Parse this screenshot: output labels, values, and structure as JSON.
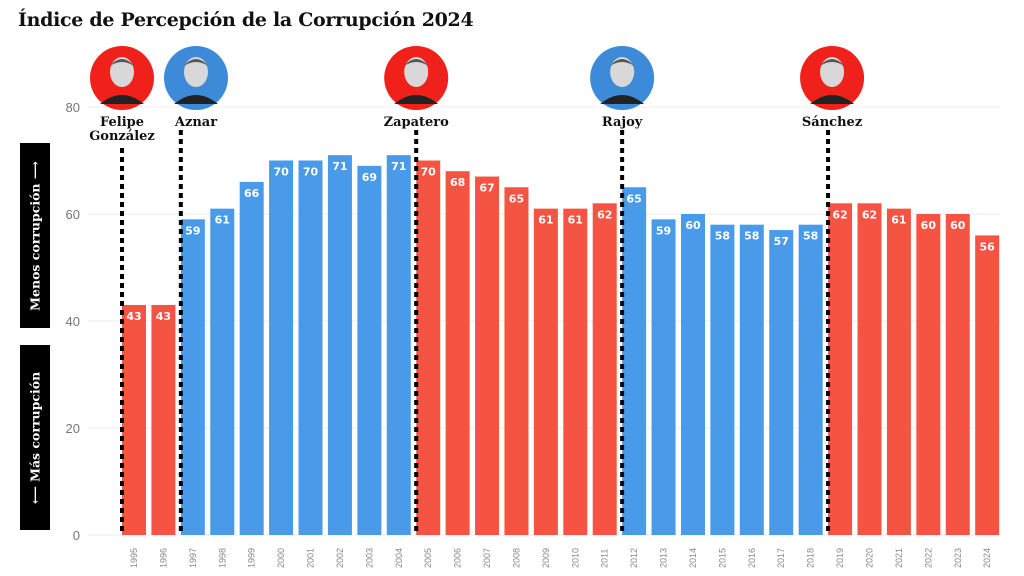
{
  "title": "Índice de Percepción de la Corrupción 2024",
  "side_labels": {
    "up": "Menos corrupción",
    "down": "Más corrupción",
    "up_arrow": "⟶",
    "down_arrow": "⟵"
  },
  "colors": {
    "red": "#f55443",
    "blue": "#4a9aea",
    "portrait_red": "#f0201a",
    "portrait_blue": "#3d8ad8"
  },
  "leaders": [
    {
      "name": "Felipe González",
      "lines": [
        "Felipe",
        "González"
      ],
      "from_year": "1995",
      "party_color": "red"
    },
    {
      "name": "Aznar",
      "lines": [
        "Aznar"
      ],
      "from_year": "1997",
      "party_color": "blue"
    },
    {
      "name": "Zapatero",
      "lines": [
        "Zapatero"
      ],
      "from_year": "2005",
      "party_color": "red"
    },
    {
      "name": "Rajoy",
      "lines": [
        "Rajoy"
      ],
      "from_year": "2012",
      "party_color": "blue"
    },
    {
      "name": "Sánchez",
      "lines": [
        "Sánchez"
      ],
      "from_year": "2019",
      "party_color": "red"
    }
  ],
  "chart_data": {
    "type": "bar",
    "title": "Índice de Percepción de la Corrupción 2024",
    "xlabel": "",
    "ylabel": "",
    "ylim": [
      0,
      80
    ],
    "yticks": [
      0,
      20,
      40,
      60,
      80
    ],
    "grid": true,
    "categories": [
      "1995",
      "1996",
      "1997",
      "1998",
      "1999",
      "2000",
      "2001",
      "2002",
      "2003",
      "2004",
      "2005",
      "2006",
      "2007",
      "2008",
      "2009",
      "2010",
      "2011",
      "2012",
      "2013",
      "2014",
      "2015",
      "2016",
      "2017",
      "2018",
      "2019",
      "2020",
      "2021",
      "2022",
      "2023",
      "2024"
    ],
    "values": [
      43,
      43,
      59,
      61,
      66,
      70,
      70,
      71,
      69,
      71,
      70,
      68,
      67,
      65,
      61,
      61,
      62,
      65,
      59,
      60,
      58,
      58,
      57,
      58,
      62,
      62,
      61,
      60,
      60,
      56
    ],
    "bar_colors": [
      "red",
      "red",
      "blue",
      "blue",
      "blue",
      "blue",
      "blue",
      "blue",
      "blue",
      "blue",
      "red",
      "red",
      "red",
      "red",
      "red",
      "red",
      "red",
      "blue",
      "blue",
      "blue",
      "blue",
      "blue",
      "blue",
      "blue",
      "red",
      "red",
      "red",
      "red",
      "red",
      "red"
    ]
  }
}
